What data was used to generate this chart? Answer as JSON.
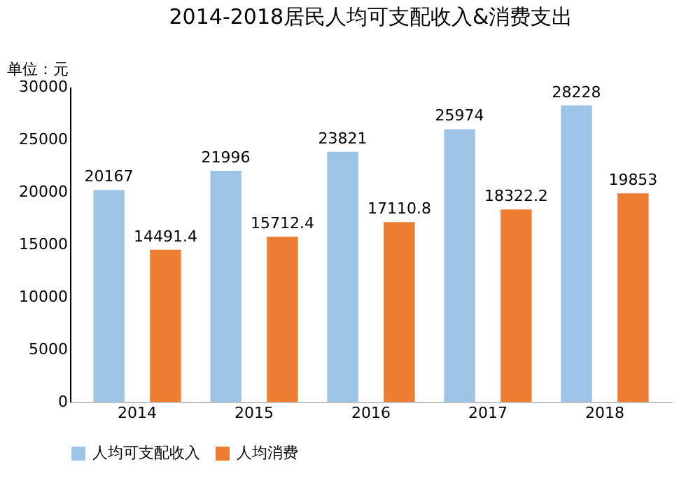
{
  "chart_data": {
    "type": "bar",
    "title": "2014-2018居民人均可支配收入&消费支出",
    "annotations": [
      "单位：元"
    ],
    "categories": [
      "2014",
      "2015",
      "2016",
      "2017",
      "2018"
    ],
    "series": [
      {
        "name": "人均可支配收入",
        "color": "#9dc3e6",
        "values": [
          20167,
          21996,
          23821,
          25974,
          28228
        ]
      },
      {
        "name": "人均消费",
        "color": "#ed7d31",
        "values": [
          14491.4,
          15712.4,
          17110.8,
          18322.2,
          19853
        ]
      }
    ],
    "ylim": [
      0,
      30000
    ],
    "yticks": [
      0,
      5000,
      10000,
      15000,
      20000,
      25000,
      30000
    ],
    "data_labels": true,
    "legend": "bottom",
    "grid": false
  }
}
